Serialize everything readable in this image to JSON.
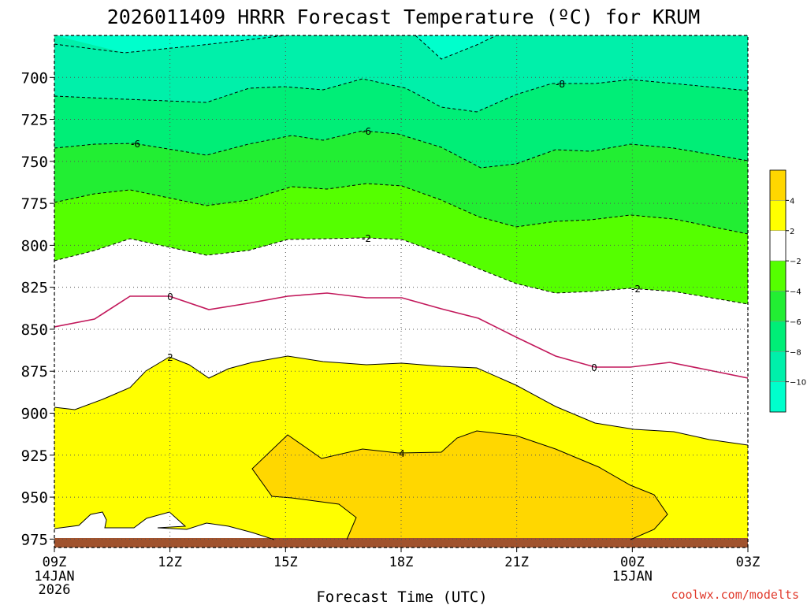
{
  "chart_data": {
    "type": "contour",
    "title": "2026011409 HRRR Forecast Temperature (ºC) for KRUM",
    "xlabel": "Forecast Time (UTC)",
    "ylabel": "",
    "credit": "coolwx.com/modelts",
    "x_ticks": [
      {
        "label": "09Z",
        "sub": [
          "14JAN",
          "2026"
        ],
        "hour": 0
      },
      {
        "label": "12Z",
        "sub": [],
        "hour": 3
      },
      {
        "label": "15Z",
        "sub": [],
        "hour": 6
      },
      {
        "label": "18Z",
        "sub": [],
        "hour": 9
      },
      {
        "label": "21Z",
        "sub": [],
        "hour": 12
      },
      {
        "label": "00Z",
        "sub": [
          "15JAN"
        ],
        "hour": 15
      },
      {
        "label": "03Z",
        "sub": [],
        "hour": 18
      }
    ],
    "y_ticks": [
      "700",
      "725",
      "750",
      "775",
      "800",
      "825",
      "850",
      "875",
      "900",
      "925",
      "950",
      "975"
    ],
    "yrange_hpa": [
      675,
      980
    ],
    "xrange_hours": [
      0,
      18
    ],
    "grid": true,
    "legend": {
      "placement": "right",
      "entries": [
        {
          "label": "4",
          "color": "#ffd700"
        },
        {
          "label": "2",
          "color": "#ffff00"
        },
        {
          "label": "−2",
          "color": "#ffffff"
        },
        {
          "label": "−4",
          "color": "#55ff00"
        },
        {
          "label": "−6",
          "color": "#22ee33"
        },
        {
          "label": "−8",
          "color": "#00ee77"
        },
        {
          "label": "−10",
          "color": "#00f0aa"
        },
        {
          "label": "",
          "color": "#00ffcc"
        }
      ]
    },
    "fill_colors": {
      "le_neg10": "#00ffcc",
      "neg10_neg8": "#00f0aa",
      "neg8_neg6": "#00ee77",
      "neg6_neg4": "#22ee33",
      "neg4_neg2": "#55ff00",
      "neg2_2": "#ffffff",
      "2_4": "#ffff00",
      "ge_4": "#ffd700",
      "ground": "#a0522d"
    },
    "contour_labels": [
      "-8",
      "-6",
      "-2",
      "0",
      "2",
      "4",
      "0",
      "-2",
      "-6"
    ]
  }
}
